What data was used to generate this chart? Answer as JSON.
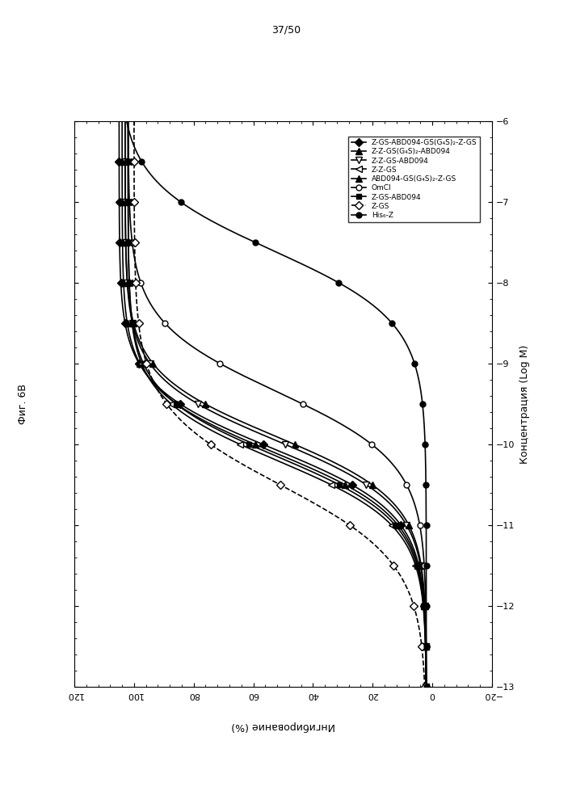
{
  "title": "37/50",
  "fig_label": "Фиг. 6B",
  "xlabel": "Концентрация (Log M)",
  "ylabel": "Ингибирование (%)",
  "xlim": [
    -13,
    -6
  ],
  "ylim": [
    -20,
    120
  ],
  "yticks": [
    -20,
    0,
    20,
    40,
    60,
    80,
    100,
    120
  ],
  "xticks": [
    -13,
    -12,
    -11,
    -10,
    -9,
    -8,
    -7,
    -6
  ],
  "series": [
    {
      "label": "Z-GS-ABD094-GS(G₄S)₂-Z-GS",
      "marker": "D",
      "fill": "black",
      "ls": "-",
      "ic50": -10.05,
      "top": 105,
      "bottom": 2,
      "hill": 1.1,
      "ms": 5
    },
    {
      "label": "Z-Z-GS(G₄S)₂-ABD094",
      "marker": "^",
      "fill": "black",
      "ls": "-",
      "ic50": -10.1,
      "top": 104,
      "bottom": 2,
      "hill": 1.1,
      "ms": 6
    },
    {
      "label": "Z-Z-GS-ABD094",
      "marker": "v",
      "fill": "white",
      "ls": "-",
      "ic50": -9.95,
      "top": 103,
      "bottom": 2,
      "hill": 1.1,
      "ms": 6
    },
    {
      "label": "Z-Z-GS",
      "marker": "<",
      "fill": "white",
      "ls": "-",
      "ic50": -10.2,
      "top": 102,
      "bottom": 2,
      "hill": 1.1,
      "ms": 6
    },
    {
      "label": "ABD094-GS(G₄S)₂-Z-GS",
      "marker": "^",
      "fill": "black",
      "ls": "-",
      "ic50": -9.9,
      "top": 103,
      "bottom": 2,
      "hill": 1.1,
      "ms": 6
    },
    {
      "label": "OmCI",
      "marker": "o",
      "fill": "white",
      "ls": "-",
      "ic50": -9.35,
      "top": 102,
      "bottom": 2,
      "hill": 1.0,
      "ms": 5
    },
    {
      "label": "Z-GS-ABD094",
      "marker": "s",
      "fill": "black",
      "ls": "-",
      "ic50": -10.15,
      "top": 102,
      "bottom": 2,
      "hill": 1.1,
      "ms": 5
    },
    {
      "label": "Z-GS",
      "marker": "D",
      "fill": "white",
      "ls": "--",
      "ic50": -10.5,
      "top": 100,
      "bottom": 2,
      "hill": 0.9,
      "ms": 5
    },
    {
      "label": "His₆-Z",
      "marker": "o",
      "fill": "black",
      "ls": "-",
      "ic50": -7.6,
      "top": 105,
      "bottom": 2,
      "hill": 1.0,
      "ms": 5
    }
  ]
}
